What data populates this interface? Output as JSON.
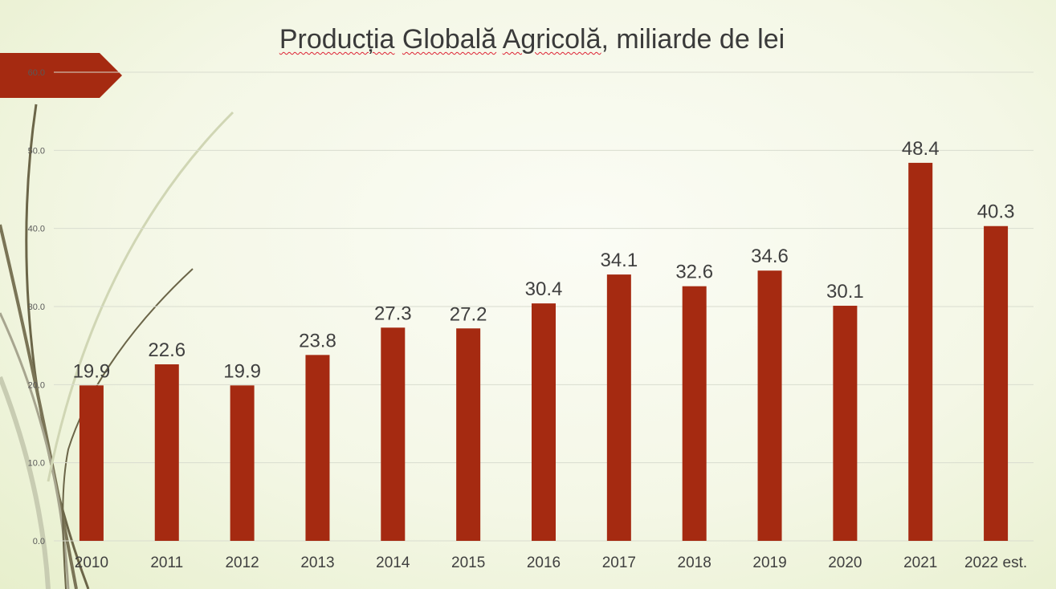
{
  "slide": {
    "title_part1": "Producția",
    "title_part2": "Globală",
    "title_part3": "Agricolă",
    "title_rest": ", miliarde de lei"
  },
  "colors": {
    "bar": "#a52a11",
    "tab": "#a52a11",
    "grid": "#d9dccf",
    "label": "#404040",
    "tick": "#595959"
  },
  "chart_data": {
    "type": "bar",
    "title": "Producția Globală Agricolă, miliarde de lei",
    "categories": [
      "2010",
      "2011",
      "2012",
      "2013",
      "2014",
      "2015",
      "2016",
      "2017",
      "2018",
      "2019",
      "2020",
      "2021",
      "2022 est."
    ],
    "values": [
      19.9,
      22.6,
      19.9,
      23.8,
      27.3,
      27.2,
      30.4,
      34.1,
      32.6,
      34.6,
      30.1,
      48.4,
      40.3
    ],
    "data_labels": [
      "19.9",
      "22.6",
      "19.9",
      "23.8",
      "27.3",
      "27.2",
      "30.4",
      "34.1",
      "32.6",
      "34.6",
      "30.1",
      "48.4",
      "40.3"
    ],
    "y_ticks": [
      "0.0",
      "10.0",
      "20.0",
      "30.0",
      "40.0",
      "50.0",
      "60.0"
    ],
    "ylim": [
      0,
      60
    ],
    "grid": true,
    "legend": "none"
  }
}
